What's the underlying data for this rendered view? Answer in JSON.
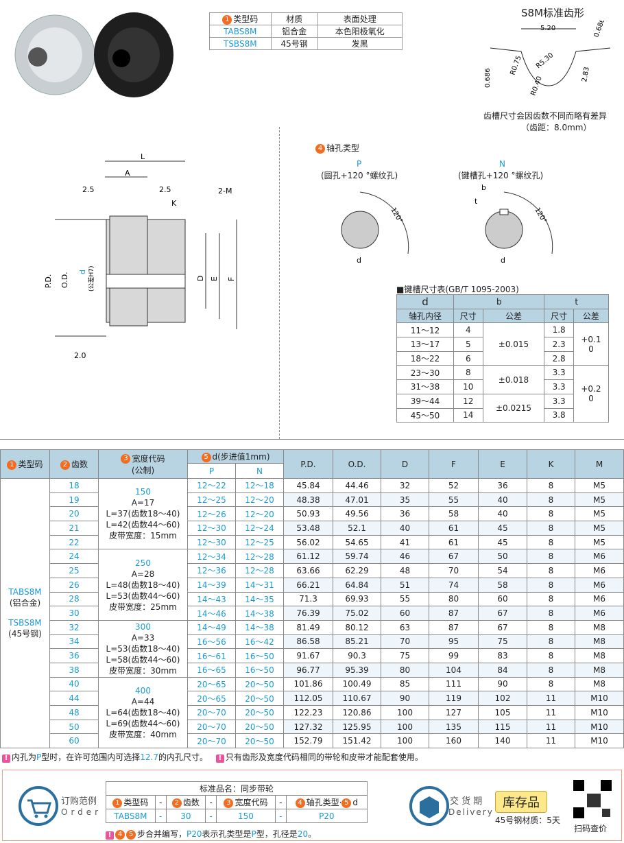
{
  "material_table": {
    "headers": [
      "类型码",
      "材质",
      "表面处理"
    ],
    "rows": [
      [
        "TABS8M",
        "铝合金",
        "本色阳极氧化"
      ],
      [
        "TSBS8M",
        "45号钢",
        "发黑"
      ]
    ]
  },
  "tooth_profile": {
    "title": "S8M标准齿形",
    "dims": [
      "5.20",
      "0.686",
      "R0.75",
      "R5.30",
      "0.686",
      "2.83",
      "R0.40"
    ],
    "note1": "齿槽尺寸会因齿数不同而略有差异",
    "note2": "（齿距：8.0mm）"
  },
  "drawing": {
    "labels": [
      "L",
      "A",
      "2.5",
      "2.5",
      "K",
      "2-M",
      "P.D.",
      "O.D.",
      "d",
      "(公差H7)",
      "D",
      "E",
      "F",
      "2.0"
    ]
  },
  "shaft_type": {
    "title": "轴孔类型",
    "P": {
      "code": "P",
      "desc": "(圆孔+120 °螺纹孔)"
    },
    "N": {
      "code": "N",
      "desc": "(键槽孔+120 °螺纹孔)"
    },
    "angle": "120°",
    "labels": [
      "d",
      "b",
      "t"
    ]
  },
  "keyway": {
    "title": "■键槽尺寸表(GB/T 1095-2003)",
    "h_d": "d",
    "h_d2": "轴孔内径",
    "h_b": "b",
    "h_t": "t",
    "sub": [
      "尺寸",
      "公差",
      "尺寸",
      "公差"
    ],
    "rows": [
      [
        "11～12",
        "4",
        "1.8"
      ],
      [
        "13～17",
        "5",
        "2.3"
      ],
      [
        "18～22",
        "6",
        "2.8"
      ],
      [
        "23～30",
        "8",
        "3.3"
      ],
      [
        "31～38",
        "10",
        "3.3"
      ],
      [
        "39～44",
        "12",
        "3.3"
      ],
      [
        "45～50",
        "14",
        "3.8"
      ]
    ],
    "b_tol": [
      "±0.015",
      "±0.018",
      "±0.0215"
    ],
    "t_tol": [
      "+0.1\n0",
      "+0.2\n0"
    ]
  },
  "main": {
    "headers": {
      "type": "类型码",
      "teeth": "齿数",
      "width": "宽度代码",
      "width2": "(公制)",
      "d": "d(步进值1mm)",
      "P": "P",
      "N": "N",
      "cols": [
        "P.D.",
        "O.D.",
        "D",
        "F",
        "E",
        "K",
        "M"
      ]
    },
    "type_cell": [
      "TABS8M",
      "(铝合金)",
      "TSBS8M",
      "(45号钢)"
    ],
    "widths": [
      {
        "code": "150",
        "lines": [
          "A=17",
          "L=37(齿数18～40)",
          "L=42(齿数44～60)",
          "皮带宽度：15mm"
        ]
      },
      {
        "code": "250",
        "lines": [
          "A=28",
          "L=48(齿数18～40)",
          "L=53(齿数44～60)",
          "皮带宽度：25mm"
        ]
      },
      {
        "code": "300",
        "lines": [
          "A=33",
          "L=53(齿数18～40)",
          "L=58(齿数44～60)",
          "皮带宽度：30mm"
        ]
      },
      {
        "code": "400",
        "lines": [
          "A=44",
          "L=64(齿数18～40)",
          "L=69(齿数44～60)",
          "皮带宽度：40mm"
        ]
      }
    ],
    "rows": [
      [
        "18",
        "12～22",
        "12～18",
        "45.84",
        "44.46",
        "32",
        "52",
        "36",
        "8",
        "M5"
      ],
      [
        "19",
        "12～25",
        "12～20",
        "48.38",
        "47.01",
        "35",
        "55",
        "40",
        "8",
        "M5"
      ],
      [
        "20",
        "12～26",
        "12～20",
        "50.93",
        "49.56",
        "36",
        "58",
        "40",
        "8",
        "M5"
      ],
      [
        "21",
        "12～30",
        "12～24",
        "53.48",
        "52.1",
        "40",
        "61",
        "45",
        "8",
        "M5"
      ],
      [
        "22",
        "12～30",
        "12～25",
        "56.02",
        "54.65",
        "41",
        "61",
        "45",
        "8",
        "M5"
      ],
      [
        "24",
        "12～34",
        "12～28",
        "61.12",
        "59.74",
        "46",
        "67",
        "50",
        "8",
        "M6"
      ],
      [
        "25",
        "12～36",
        "12～28",
        "63.66",
        "62.29",
        "48",
        "70",
        "54",
        "8",
        "M6"
      ],
      [
        "26",
        "14～39",
        "14～31",
        "66.21",
        "64.84",
        "51",
        "74",
        "58",
        "8",
        "M6"
      ],
      [
        "28",
        "14～43",
        "14～35",
        "71.3",
        "69.93",
        "55",
        "80",
        "60",
        "8",
        "M6"
      ],
      [
        "30",
        "14～46",
        "14～38",
        "76.39",
        "75.02",
        "60",
        "87",
        "67",
        "8",
        "M6"
      ],
      [
        "32",
        "14～49",
        "14～38",
        "81.49",
        "80.12",
        "63",
        "87",
        "67",
        "8",
        "M8"
      ],
      [
        "34",
        "16～56",
        "16～42",
        "86.58",
        "85.21",
        "70",
        "95",
        "75",
        "8",
        "M8"
      ],
      [
        "36",
        "16～61",
        "16～50",
        "91.67",
        "90.3",
        "75",
        "99",
        "83",
        "8",
        "M8"
      ],
      [
        "38",
        "16～65",
        "16～50",
        "96.77",
        "95.39",
        "80",
        "104",
        "84",
        "8",
        "M8"
      ],
      [
        "40",
        "20～65",
        "20～50",
        "101.86",
        "100.49",
        "85",
        "111",
        "90",
        "8",
        "M8"
      ],
      [
        "44",
        "20～65",
        "20～50",
        "112.05",
        "110.67",
        "90",
        "119",
        "102",
        "11",
        "M10"
      ],
      [
        "48",
        "20～70",
        "20～50",
        "122.23",
        "120.86",
        "100",
        "127",
        "105",
        "11",
        "M10"
      ],
      [
        "50",
        "20～70",
        "20～50",
        "127.32",
        "125.95",
        "100",
        "135",
        "115",
        "11",
        "M10"
      ],
      [
        "60",
        "20～70",
        "20～50",
        "152.79",
        "151.42",
        "100",
        "160",
        "140",
        "11",
        "M10"
      ]
    ]
  },
  "notes": {
    "n1a": "内孔为",
    "n1b": "P",
    "n1c": "型时，在许可范围内可选择",
    "n1d": "12.7",
    "n1e": "的内孔尺寸。",
    "n2": "只有齿形及宽度代码相同的带轮和皮带才能配套使用。"
  },
  "order": {
    "label_cn": "订购范例",
    "label_en": "Order",
    "title": "标准品名：同步带轮",
    "cols": [
      "类型码",
      "-",
      "齿数",
      "-",
      "宽度代码",
      "-",
      "轴孔类型·",
      "d"
    ],
    "vals": [
      "TABS8M",
      "-",
      "30",
      "-",
      "150",
      "-",
      "P20"
    ],
    "note_a": "步合并编写，",
    "note_b": "P20",
    "note_c": "表示孔类型是",
    "note_d": "P",
    "note_e": "型，孔径是",
    "note_f": "20",
    "note_g": "。"
  },
  "delivery": {
    "label_cn": "交 货 期",
    "label_en": "Delivery",
    "stock": "库存品",
    "steel": "45号钢材质：5天",
    "qr": "扫码查价"
  },
  "colors": {
    "accent": "#1a9ad6",
    "header_bg": "#b8d3e2",
    "badge": "#f26c21",
    "border_order": "#f0a184"
  }
}
